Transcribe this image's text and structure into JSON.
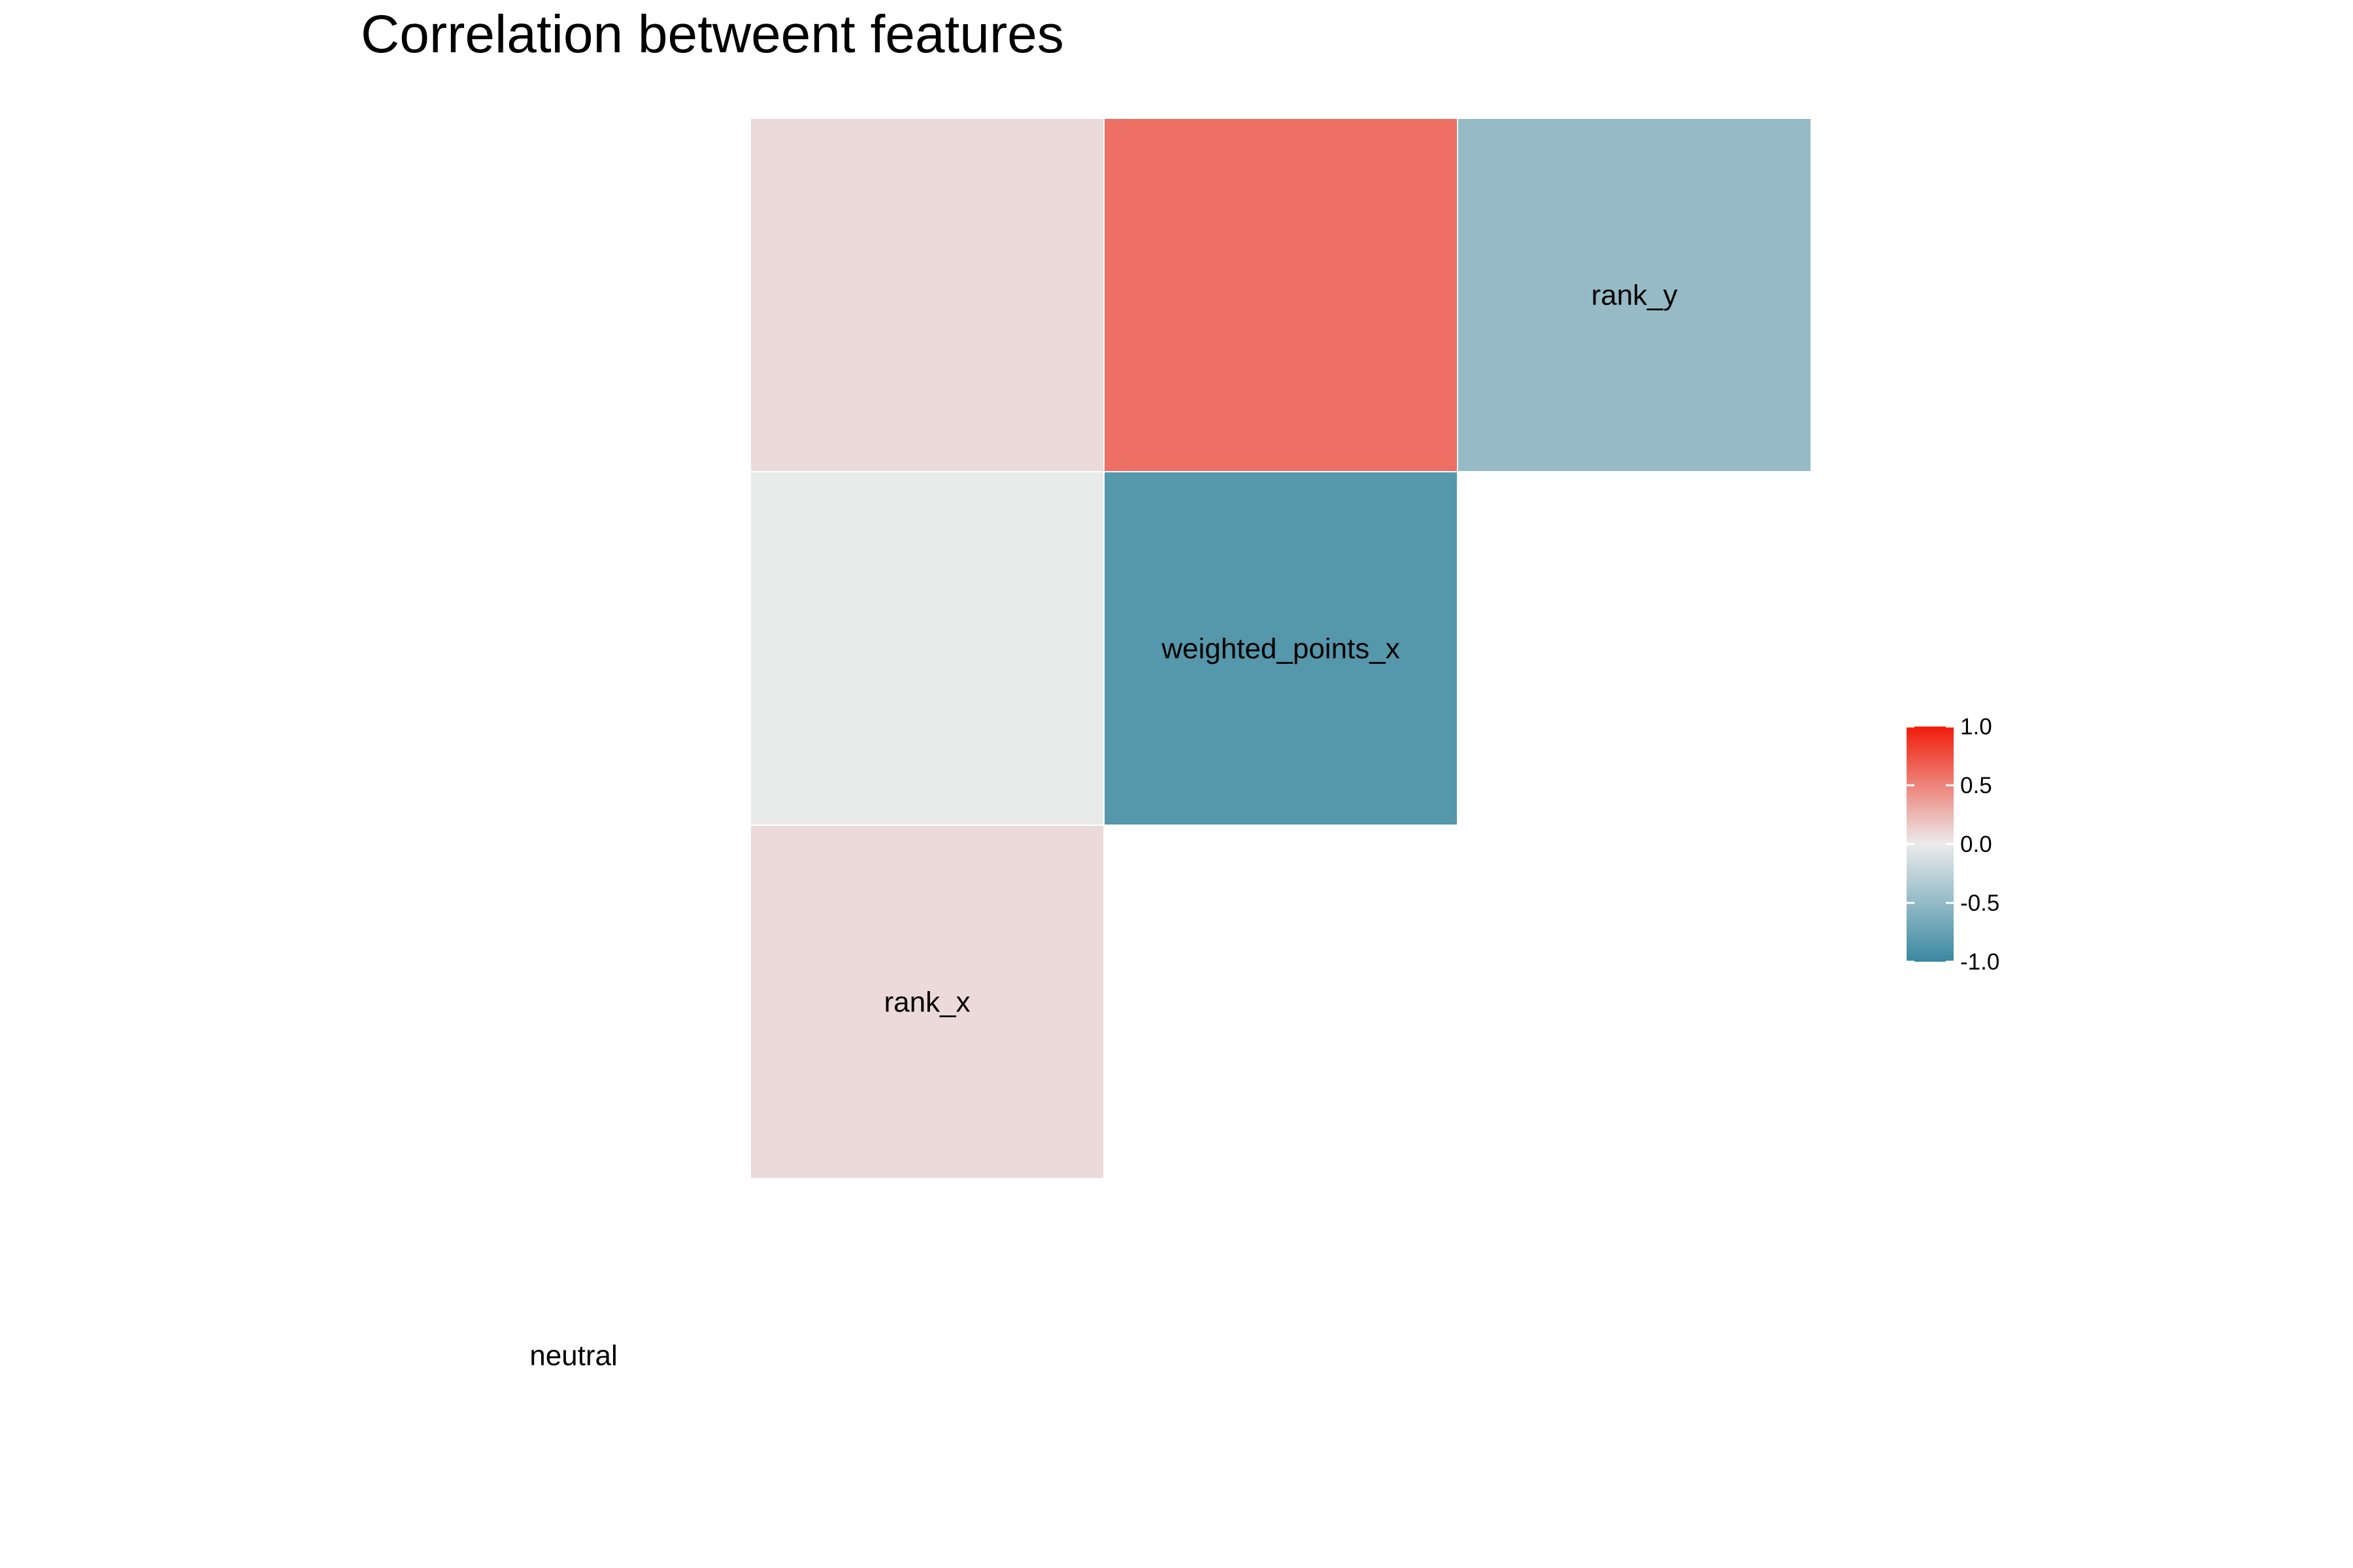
{
  "chart_data": {
    "type": "heatmap",
    "title": "Correlation betweent features",
    "variables": [
      "neutral",
      "rank_x",
      "weighted_points_x",
      "rank_y"
    ],
    "cells": [
      {
        "row": "rank_x",
        "col": "neutral",
        "value": 0.08
      },
      {
        "row": "weighted_points_x",
        "col": "neutral",
        "value": -0.01
      },
      {
        "row": "weighted_points_x",
        "col": "rank_x",
        "value": -0.85
      },
      {
        "row": "rank_y",
        "col": "neutral",
        "value": 0.08
      },
      {
        "row": "rank_y",
        "col": "rank_x",
        "value": 0.6
      },
      {
        "row": "rank_y",
        "col": "weighted_points_x",
        "value": -0.48
      }
    ],
    "color_scale": {
      "range": [
        -1,
        1
      ],
      "low": "#3a88a0",
      "mid": "#ebebeb",
      "high": "#f01c0a",
      "ticks": [
        "1.0",
        "0.5",
        "0.0",
        "-0.5",
        "-1.0"
      ]
    },
    "legend_placement": "right",
    "grid": false
  }
}
